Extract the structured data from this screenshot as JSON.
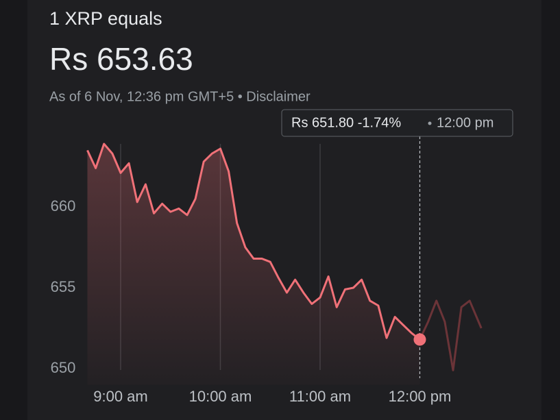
{
  "chart_data": {
    "type": "line",
    "title": "1 XRP equals",
    "price": "Rs 653.63",
    "subtitle": "As of 6 Nov, 12:36 pm GMT+5 • Disclaimer",
    "tooltip": {
      "price": "Rs 651.80 -1.74%",
      "time": "12:00 pm"
    },
    "cursor_x": 720,
    "x": [
      520,
      525,
      530,
      535,
      540,
      545,
      550,
      555,
      560,
      565,
      570,
      575,
      580,
      585,
      590,
      595,
      600,
      605,
      610,
      615,
      620,
      625,
      630,
      635,
      640,
      645,
      650,
      655,
      660,
      665,
      670,
      675,
      680,
      685,
      690,
      695,
      700,
      705,
      710,
      715,
      720,
      725,
      730,
      735,
      740,
      745,
      750,
      757
    ],
    "series": [
      {
        "name": "XRP",
        "color": "#f07178",
        "faded_color": "#6b3438",
        "values": [
          663.5,
          662.4,
          663.9,
          663.3,
          662.1,
          662.7,
          660.3,
          661.4,
          659.6,
          660.2,
          659.7,
          659.9,
          659.5,
          660.5,
          662.8,
          663.3,
          663.6,
          662.2,
          659.0,
          657.5,
          656.8,
          656.8,
          656.6,
          655.6,
          654.7,
          655.5,
          654.7,
          654.0,
          654.4,
          655.7,
          653.8,
          654.9,
          655.0,
          655.5,
          654.2,
          653.9,
          651.9,
          653.2,
          652.7,
          652.2,
          651.8,
          652.9,
          654.2,
          652.9,
          649.9,
          653.8,
          654.2,
          652.5
        ]
      }
    ],
    "xlim": [
      520,
      757
    ],
    "ylim": [
      649,
      665
    ],
    "yticks": [
      650,
      655,
      660
    ],
    "xticks": [
      {
        "value": 540,
        "label": "9:00 am"
      },
      {
        "value": 600,
        "label": "10:00 am"
      },
      {
        "value": 660,
        "label": "11:00 am"
      },
      {
        "value": 720,
        "label": "12:00 pm"
      }
    ]
  }
}
